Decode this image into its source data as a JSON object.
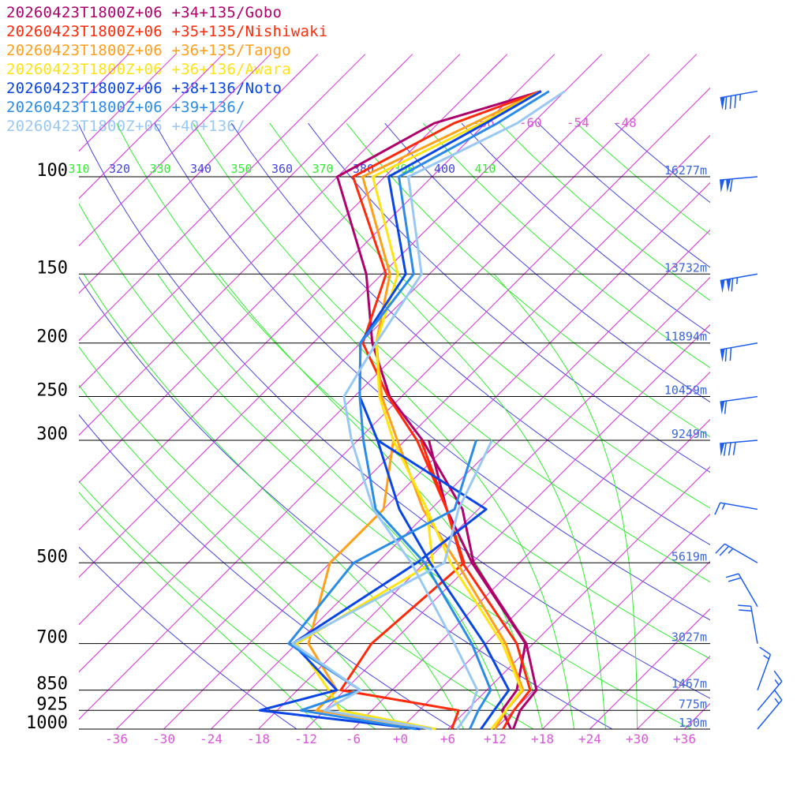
{
  "legend": [
    {
      "text": "20260423T1800Z+06 +34+135/Gobo",
      "color": "#b0006c"
    },
    {
      "text": "20260423T1800Z+06 +35+135/Nishiwaki",
      "color": "#ff2a0a"
    },
    {
      "text": "20260423T1800Z+06 +36+135/Tango",
      "color": "#ff9f1a"
    },
    {
      "text": "20260423T1800Z+06 +36+136/Awara",
      "color": "#ffe414"
    },
    {
      "text": "20260423T1800Z+06 +38+136/Noto",
      "color": "#0a46e6"
    },
    {
      "text": "20260423T1800Z+06 +39+136/",
      "color": "#2a8ce8"
    },
    {
      "text": "20260423T1800Z+06 +40+136/",
      "color": "#9ac8f4"
    }
  ],
  "chart_data": {
    "type": "line",
    "chart_kind": "skew-T log-p sounding",
    "pressure_levels": [
      {
        "p": 100,
        "label": "100",
        "height": "16277m"
      },
      {
        "p": 150,
        "label": "150",
        "height": "13732m"
      },
      {
        "p": 200,
        "label": "200",
        "height": "11894m"
      },
      {
        "p": 250,
        "label": "250",
        "height": "10459m"
      },
      {
        "p": 300,
        "label": "300",
        "height": "9249m"
      },
      {
        "p": 500,
        "label": "500",
        "height": "5619m"
      },
      {
        "p": 700,
        "label": "700",
        "height": "3027m"
      },
      {
        "p": 850,
        "label": "850",
        "height": "1467m"
      },
      {
        "p": 925,
        "label": "925",
        "height": "775m"
      },
      {
        "p": 1000,
        "label": "1000",
        "height": "130m"
      }
    ],
    "x_ticks": [
      "-36",
      "-30",
      "-24",
      "-18",
      "-12",
      "-6",
      "+0",
      "+6",
      "+12",
      "+18",
      "+24",
      "+30",
      "+36"
    ],
    "x_tick_values": [
      -36,
      -30,
      -24,
      -18,
      -12,
      -6,
      0,
      6,
      12,
      18,
      24,
      30,
      36
    ],
    "isotherm_top_labels": [
      {
        "text": "-66",
        "t": -66
      },
      {
        "text": "-60",
        "t": -60
      },
      {
        "text": "-54",
        "t": -54
      },
      {
        "text": "-48",
        "t": -48
      }
    ],
    "theta_labels": [
      {
        "text": "310",
        "color": "#33ee33"
      },
      {
        "text": "320",
        "color": "#4444dd"
      },
      {
        "text": "330",
        "color": "#33ee33"
      },
      {
        "text": "340",
        "color": "#4444dd"
      },
      {
        "text": "350",
        "color": "#33ee33"
      },
      {
        "text": "360",
        "color": "#4444dd"
      },
      {
        "text": "370",
        "color": "#33ee33"
      },
      {
        "text": "380",
        "color": "#4444dd"
      },
      {
        "text": "390",
        "color": "#33ee33"
      },
      {
        "text": "400",
        "color": "#4444dd"
      },
      {
        "text": "410",
        "color": "#33ee33"
      }
    ],
    "series": [
      {
        "name": "20260423T1800Z+06 +34+135/Gobo",
        "color": "#b0006c",
        "temp": [
          [
            1000,
            14.3
          ],
          [
            925,
            12.8
          ],
          [
            850,
            12.3
          ],
          [
            700,
            5.1
          ],
          [
            500,
            -11.8
          ],
          [
            400,
            -20
          ],
          [
            300,
            -33.8
          ],
          [
            250,
            -43.5
          ],
          [
            200,
            -52.5
          ],
          [
            150,
            -62
          ],
          [
            100,
            -78
          ],
          [
            80,
            -72.5
          ],
          [
            70,
            -63
          ]
        ],
        "dewp": [
          [
            1000,
            14
          ],
          [
            925,
            10.5
          ],
          [
            850,
            9.8
          ],
          [
            700,
            5
          ],
          [
            500,
            -12
          ],
          [
            400,
            -22
          ],
          [
            300,
            -33
          ]
        ]
      },
      {
        "name": "20260423T1800Z+06 +35+135/Nishiwaki",
        "color": "#ff2a0a",
        "temp": [
          [
            1000,
            13
          ],
          [
            925,
            12
          ],
          [
            850,
            11.5
          ],
          [
            700,
            3.9
          ],
          [
            500,
            -13.2
          ],
          [
            400,
            -22
          ],
          [
            300,
            -34.5
          ],
          [
            250,
            -43.7
          ],
          [
            200,
            -53.7
          ],
          [
            150,
            -59.5
          ],
          [
            100,
            -76
          ],
          [
            80,
            -70
          ],
          [
            70,
            -63
          ]
        ],
        "dewp": [
          [
            1000,
            6.5
          ],
          [
            925,
            5
          ],
          [
            850,
            -12.5
          ],
          [
            700,
            -14.5
          ],
          [
            500,
            -13
          ],
          [
            400,
            -22
          ],
          [
            300,
            -34
          ]
        ]
      },
      {
        "name": "20260423T1800Z+06 +36+135/Tango",
        "color": "#ff9f1a",
        "temp": [
          [
            1000,
            12
          ],
          [
            925,
            11
          ],
          [
            850,
            10.6
          ],
          [
            700,
            2.5
          ],
          [
            500,
            -13.9
          ],
          [
            400,
            -25
          ],
          [
            300,
            -37
          ],
          [
            250,
            -44.5
          ],
          [
            200,
            -52
          ],
          [
            150,
            -59
          ],
          [
            100,
            -74.8
          ],
          [
            80,
            -67.5
          ],
          [
            70,
            -63
          ]
        ],
        "dewp": [
          [
            1000,
            4
          ],
          [
            925,
            -13
          ],
          [
            850,
            -13
          ],
          [
            700,
            -22.5
          ],
          [
            500,
            -30
          ],
          [
            400,
            -30
          ],
          [
            300,
            -37.5
          ]
        ]
      },
      {
        "name": "20260423T1800Z+06 +36+136/Awara",
        "color": "#ffe414",
        "temp": [
          [
            1000,
            11.5
          ],
          [
            925,
            11
          ],
          [
            850,
            10.4
          ],
          [
            700,
            2.1
          ],
          [
            500,
            -14.7
          ],
          [
            400,
            -24.5
          ],
          [
            300,
            -37.5
          ],
          [
            250,
            -44.8
          ],
          [
            200,
            -52
          ],
          [
            150,
            -58
          ],
          [
            100,
            -73.5
          ],
          [
            80,
            -66.5
          ],
          [
            70,
            -63
          ]
        ],
        "dewp": [
          [
            1000,
            4.5
          ],
          [
            925,
            -10
          ],
          [
            850,
            -14
          ],
          [
            700,
            -24
          ],
          [
            500,
            -17
          ],
          [
            400,
            -24.5
          ],
          [
            300,
            -37.5
          ]
        ]
      },
      {
        "name": "20260423T1800Z+06 +38+136/Noto",
        "color": "#0a46e6",
        "temp": [
          [
            1000,
            10.2
          ],
          [
            925,
            9.5
          ],
          [
            850,
            8.8
          ],
          [
            700,
            -0.2
          ],
          [
            500,
            -17.3
          ],
          [
            400,
            -28
          ],
          [
            300,
            -39.5
          ],
          [
            250,
            -47.3
          ],
          [
            200,
            -54
          ],
          [
            150,
            -57
          ],
          [
            100,
            -71.5
          ],
          [
            80,
            -66
          ],
          [
            70,
            -63
          ]
        ],
        "dewp": [
          [
            1000,
            2.5
          ],
          [
            925,
            -20.2
          ],
          [
            850,
            -13
          ],
          [
            700,
            -24.5
          ],
          [
            500,
            -19
          ],
          [
            400,
            -17
          ],
          [
            300,
            -39.5
          ]
        ]
      },
      {
        "name": "20260423T1800Z+06 +39+136/",
        "color": "#2a8ce8",
        "temp": [
          [
            1000,
            8.8
          ],
          [
            925,
            7.5
          ],
          [
            850,
            6.5
          ],
          [
            700,
            -1.8
          ],
          [
            500,
            -18
          ],
          [
            400,
            -31
          ],
          [
            300,
            -41.3
          ],
          [
            250,
            -47.3
          ],
          [
            200,
            -54
          ],
          [
            150,
            -56
          ],
          [
            100,
            -70.2
          ],
          [
            80,
            -64.5
          ],
          [
            70,
            -62
          ]
        ],
        "dewp": [
          [
            1000,
            2
          ],
          [
            925,
            -15
          ],
          [
            850,
            -10
          ],
          [
            700,
            -25
          ],
          [
            500,
            -27
          ],
          [
            400,
            -21
          ],
          [
            300,
            -27
          ]
        ]
      },
      {
        "name": "20260423T1800Z+06 +40+136/",
        "color": "#9ac8f4",
        "temp": [
          [
            1000,
            7.2
          ],
          [
            925,
            6.5
          ],
          [
            850,
            4.8
          ],
          [
            700,
            -4
          ],
          [
            500,
            -19.7
          ],
          [
            400,
            -31.3
          ],
          [
            300,
            -42.8
          ],
          [
            250,
            -49.3
          ],
          [
            200,
            -52
          ],
          [
            150,
            -55
          ],
          [
            100,
            -69
          ],
          [
            80,
            -62
          ],
          [
            70,
            -60
          ]
        ],
        "dewp": [
          [
            1000,
            4
          ],
          [
            925,
            -12
          ],
          [
            850,
            -10
          ],
          [
            700,
            -24.5
          ],
          [
            500,
            -15.5
          ],
          [
            400,
            -20.5
          ],
          [
            300,
            -25
          ]
        ]
      }
    ],
    "wind_barbs": [
      {
        "p": 70,
        "dir": 260,
        "speed": 85
      },
      {
        "p": 100,
        "dir": 265,
        "speed": 110
      },
      {
        "p": 150,
        "dir": 260,
        "speed": 115
      },
      {
        "p": 200,
        "dir": 260,
        "speed": 70
      },
      {
        "p": 250,
        "dir": 262,
        "speed": 60
      },
      {
        "p": 300,
        "dir": 265,
        "speed": 80
      },
      {
        "p": 400,
        "dir": 280,
        "speed": 15
      },
      {
        "p": 500,
        "dir": 300,
        "speed": 25
      },
      {
        "p": 600,
        "dir": 330,
        "speed": 20
      },
      {
        "p": 700,
        "dir": 350,
        "speed": 20
      },
      {
        "p": 850,
        "dir": 20,
        "speed": 15
      },
      {
        "p": 925,
        "dir": 40,
        "speed": 15
      },
      {
        "p": 1000,
        "dir": 40,
        "speed": 15
      }
    ],
    "colors": {
      "isotherm": "#dd33dd",
      "isobar": "#000000",
      "dry_adiabat": "#4444dd",
      "moist_adiabat": "#33ee33",
      "height_label": "#3a66d8",
      "barb": "#1a5cf0"
    }
  }
}
